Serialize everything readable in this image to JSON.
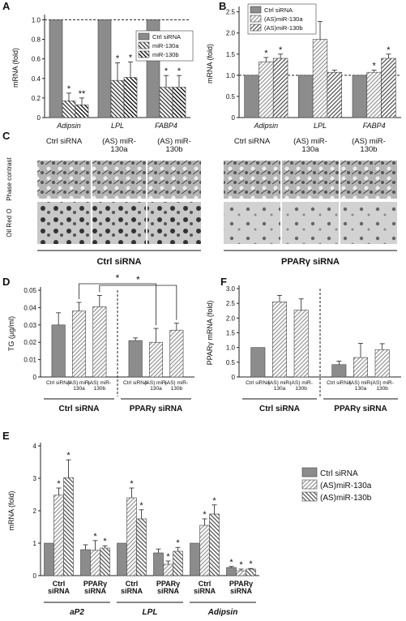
{
  "panel_c": {
    "panel": "C",
    "columns": [
      "Ctrl siRNA",
      "(AS) miR-130a",
      "(AS) miR-130b",
      "Ctrl siRNA",
      "(AS) miR-130a",
      "(AS) miR-130b"
    ],
    "rows": [
      "Phase contrast",
      "Oil Red O"
    ],
    "groups": [
      "Ctrl siRNA",
      "PPARγ siRNA"
    ]
  },
  "chart_data": [
    {
      "panel": "A",
      "type": "bar",
      "y_label": "mRNA (fold)",
      "categories": [
        "Adipsin",
        "LPL",
        "FABP4"
      ],
      "category_style": "italic",
      "ylim": [
        0,
        1.02
      ],
      "yticks": [
        0,
        0.2,
        0.4,
        0.6,
        0.8,
        {
          "value": 1,
          "label": "1.0"
        }
      ],
      "reference_line": 1,
      "legend": "upper right",
      "legend_frame": true,
      "series": [
        {
          "name": "Ctrl siRNA",
          "color": "#8c8c8c",
          "values": [
            1,
            1,
            1
          ]
        },
        {
          "name": "miR-130a",
          "color": "#333333",
          "hatch": "\\",
          "values": [
            0.17,
            0.38,
            0.31
          ],
          "errors": [
            0.08,
            0.18,
            0.12
          ],
          "annotations": [
            "*",
            "*",
            "*"
          ]
        },
        {
          "name": "miR-130b",
          "color": "#000000",
          "hatch": "\\",
          "values": [
            0.13,
            0.41,
            0.31
          ],
          "errors": [
            0.07,
            0.16,
            0.12
          ],
          "annotations": [
            "**",
            "*",
            "*"
          ]
        }
      ]
    },
    {
      "panel": "B",
      "type": "bar",
      "y_label": "mRNA (fold)",
      "categories": [
        "Adipsin",
        "LPL",
        "FABP4"
      ],
      "category_style": "italic",
      "ylim": [
        0,
        2.55
      ],
      "yticks": [
        0,
        0.5,
        {
          "value": 1,
          "label": "1.0"
        },
        1.5,
        {
          "value": 2,
          "label": "2.0"
        },
        2.5
      ],
      "reference_line": 1,
      "legend": "upper left",
      "legend_frame": true,
      "series": [
        {
          "name": "Ctrl siRNA",
          "color": "#8c8c8c",
          "values": [
            1,
            1,
            1
          ]
        },
        {
          "name": "(AS)miR-130a",
          "color": "#9a9a9a",
          "hatch": "/",
          "values": [
            1.32,
            1.85,
            1.07
          ],
          "errors": [
            0.1,
            0.42,
            0.05
          ],
          "annotations": [
            "*",
            null,
            "*"
          ]
        },
        {
          "name": "(AS)miR-130b",
          "color": "#555555",
          "hatch": "/",
          "values": [
            1.4,
            1.07,
            1.4
          ],
          "errors": [
            0.1,
            0.05,
            0.1
          ],
          "annotations": [
            "*",
            null,
            "*"
          ]
        }
      ]
    },
    {
      "panel": "D",
      "type": "bar",
      "y_label": "TG (µg/ml)",
      "categories": [
        "Ctrl siRNA",
        "PPARγ siRNA"
      ],
      "series_labels": "below bars",
      "group_separator": true,
      "ylim": [
        0,
        0.05
      ],
      "yticks": [
        0,
        0.01,
        0.02,
        0.03,
        0.04,
        0.05
      ],
      "brackets": [
        {
          "label": "*",
          "series": 1,
          "categories": [
            0,
            1
          ]
        },
        {
          "label": "*",
          "series": 2,
          "categories": [
            0,
            1
          ]
        }
      ],
      "series": [
        {
          "name": "Ctrl siRNA",
          "color": "#8c8c8c",
          "values": [
            0.03,
            0.021
          ],
          "errors": [
            0.007,
            0.0015
          ]
        },
        {
          "name": "(AS) miR-130a",
          "color": "#9a9a9a",
          "hatch": "/",
          "values": [
            0.038,
            0.02
          ],
          "errors": [
            0.005,
            0.008
          ]
        },
        {
          "name": "(AS) miR-130b",
          "color": "#9a9a9a",
          "hatch": "/",
          "values": [
            0.0405,
            0.027
          ],
          "errors": [
            0.0065,
            0.004
          ]
        }
      ]
    },
    {
      "panel": "F",
      "type": "bar",
      "y_label": "PPARγ mRNA (fold)",
      "categories": [
        "Ctrl siRNA",
        "PPARγ siRNA"
      ],
      "series_labels": "below bars",
      "group_separator": true,
      "ylim": [
        0,
        3
      ],
      "yticks": [
        0,
        0.5,
        {
          "value": 1,
          "label": "1.0"
        },
        1.5,
        {
          "value": 2,
          "label": "2.0"
        },
        2.5,
        {
          "value": 3,
          "label": "3.0"
        }
      ],
      "series": [
        {
          "name": "Ctrl siRNA",
          "color": "#8c8c8c",
          "values": [
            1,
            0.42
          ],
          "errors": [
            null,
            0.12
          ]
        },
        {
          "name": "(AS) miR-130a",
          "color": "#9a9a9a",
          "hatch": "/",
          "values": [
            2.55,
            0.66
          ],
          "errors": [
            0.22,
            0.48
          ]
        },
        {
          "name": "(AS) miR-130b",
          "color": "#9a9a9a",
          "hatch": "/",
          "values": [
            2.27,
            0.93
          ],
          "errors": [
            0.38,
            0.2
          ]
        }
      ]
    },
    {
      "panel": "E",
      "type": "bar",
      "y_label": "mRNA (fold)",
      "groups": [
        {
          "label": "aP2",
          "categories": [
            "Ctrl siRNA",
            "PPARγ siRNA"
          ]
        },
        {
          "label": "LPL",
          "categories": [
            "Ctrl siRNA",
            "PPARγ siRNA"
          ]
        },
        {
          "label": "Adipsin",
          "categories": [
            "Ctrl siRNA",
            "PPARγ siRNA"
          ]
        }
      ],
      "ylim": [
        0,
        4
      ],
      "yticks": [
        0,
        1,
        2,
        3,
        4
      ],
      "legend": "right",
      "legend_frame": false,
      "series": [
        {
          "name": "Ctrl siRNA",
          "color": "#8c8c8c",
          "values": [
            1,
            0.8,
            1,
            0.7,
            1,
            0.25
          ],
          "errors": [
            null,
            0.15,
            null,
            0.12,
            null,
            0.03
          ],
          "annotations": [
            null,
            null,
            null,
            null,
            null,
            "*"
          ]
        },
        {
          "name": "(AS)miR-130a",
          "color": "#9a9a9a",
          "hatch": "/",
          "values": [
            2.48,
            0.78,
            2.4,
            0.35,
            1.55,
            0.15
          ],
          "errors": [
            0.22,
            0.3,
            0.3,
            0.1,
            0.2,
            0.05
          ],
          "annotations": [
            "*",
            "*",
            "*",
            "*",
            "*",
            "*"
          ]
        },
        {
          "name": "(AS)miR-130b",
          "color": "#555555",
          "hatch": "\\",
          "values": [
            3.02,
            0.85,
            1.75,
            0.75,
            1.9,
            0.2
          ],
          "errors": [
            0.55,
            0.07,
            0.28,
            0.12,
            0.28,
            0.02
          ],
          "annotations": [
            "*",
            "*",
            "*",
            "*",
            "*",
            "*"
          ]
        }
      ]
    }
  ]
}
